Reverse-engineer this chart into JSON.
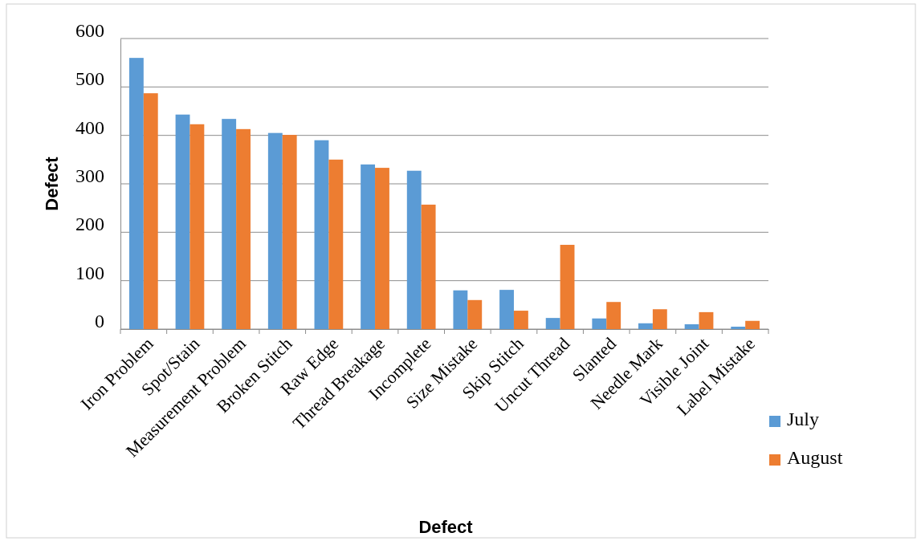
{
  "chart_data": {
    "type": "bar",
    "xlabel": "Defect",
    "ylabel": "Defect",
    "categories": [
      "Iron Problem",
      "Spot/Stain",
      "Measurement Problem",
      "Broken Stitch",
      "Raw Edge",
      "Thread Breakage",
      "Incomplete",
      "Size Mistake",
      "Skip Stitch",
      "Uncut Thread",
      "Slanted",
      "Needle Mark",
      "Visible Joint",
      "Label Mistake"
    ],
    "series": [
      {
        "name": "July",
        "color": "#5b9bd5",
        "values": [
          560,
          443,
          434,
          405,
          390,
          340,
          327,
          80,
          81,
          23,
          22,
          12,
          10,
          5
        ]
      },
      {
        "name": "August",
        "color": "#ed7d31",
        "values": [
          487,
          423,
          413,
          401,
          350,
          333,
          257,
          60,
          38,
          174,
          56,
          41,
          35,
          17
        ]
      }
    ],
    "ylim": [
      0,
      600
    ],
    "yticks": [
      0,
      100,
      200,
      300,
      400,
      500,
      600
    ],
    "grid": "y",
    "legend": "right"
  }
}
